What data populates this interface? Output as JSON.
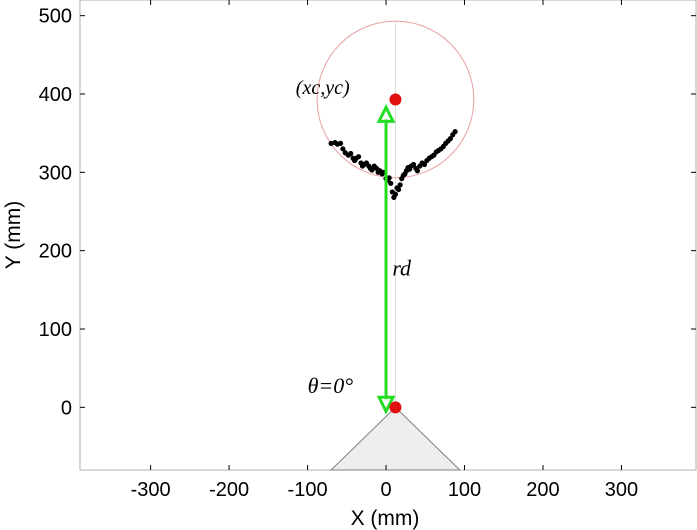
{
  "chart_data": {
    "type": "scatter",
    "xlabel": "X (mm)",
    "ylabel": "Y (mm)",
    "xlim": [
      -390,
      395
    ],
    "ylim": [
      -80,
      520
    ],
    "xticks": [
      -300,
      -200,
      -100,
      0,
      100,
      200,
      300
    ],
    "yticks": [
      0,
      100,
      200,
      300,
      400,
      500
    ],
    "grid": false,
    "legend": "none",
    "colors": {
      "points": "#000000",
      "circle": "#e8a0a0",
      "centers": "#e01010",
      "arrow": "#22dd22",
      "sensor": "#eeeeee"
    },
    "circle": {
      "xc": 12,
      "yc": 393,
      "r": 100
    },
    "centers": [
      {
        "name": "circle-center",
        "x": 12,
        "y": 393
      },
      {
        "name": "sensor-origin",
        "x": 12,
        "y": 0
      }
    ],
    "arrow": {
      "x": 0,
      "y_from": 383,
      "y_to": -5
    },
    "sensor_cone": [
      [
        -70,
        -80
      ],
      [
        12,
        0
      ],
      [
        94,
        -80
      ]
    ],
    "annotations": [
      {
        "name": "center-label",
        "text": "(xc,yc)",
        "x": -115,
        "y": 400
      },
      {
        "name": "radius-label",
        "text": "rd",
        "x": 8,
        "y": 168
      },
      {
        "name": "angle-label",
        "text": "θ=0°",
        "x": -100,
        "y": 18
      }
    ],
    "points": [
      [
        -70,
        337
      ],
      [
        -65,
        338
      ],
      [
        -62,
        336
      ],
      [
        -58,
        337
      ],
      [
        -55,
        330
      ],
      [
        -52,
        325
      ],
      [
        -48,
        322
      ],
      [
        -45,
        324
      ],
      [
        -42,
        318
      ],
      [
        -40,
        315
      ],
      [
        -38,
        318
      ],
      [
        -35,
        320
      ],
      [
        -32,
        312
      ],
      [
        -30,
        308
      ],
      [
        -28,
        310
      ],
      [
        -25,
        312
      ],
      [
        -22,
        308
      ],
      [
        -20,
        305
      ],
      [
        -18,
        303
      ],
      [
        -15,
        308
      ],
      [
        -12,
        305
      ],
      [
        -10,
        300
      ],
      [
        -8,
        302
      ],
      [
        -5,
        298
      ],
      [
        -3,
        300
      ],
      [
        0,
        292
      ],
      [
        2,
        290
      ],
      [
        4,
        293
      ],
      [
        6,
        286
      ],
      [
        8,
        275
      ],
      [
        10,
        268
      ],
      [
        12,
        272
      ],
      [
        14,
        280
      ],
      [
        16,
        278
      ],
      [
        18,
        284
      ],
      [
        20,
        292
      ],
      [
        22,
        296
      ],
      [
        24,
        298
      ],
      [
        26,
        302
      ],
      [
        28,
        306
      ],
      [
        30,
        304
      ],
      [
        32,
        308
      ],
      [
        35,
        310
      ],
      [
        38,
        305
      ],
      [
        40,
        302
      ],
      [
        43,
        308
      ],
      [
        46,
        312
      ],
      [
        49,
        310
      ],
      [
        52,
        315
      ],
      [
        55,
        318
      ],
      [
        58,
        320
      ],
      [
        61,
        322
      ],
      [
        64,
        326
      ],
      [
        67,
        328
      ],
      [
        70,
        330
      ],
      [
        73,
        333
      ],
      [
        76,
        337
      ],
      [
        79,
        340
      ],
      [
        82,
        343
      ],
      [
        85,
        348
      ],
      [
        88,
        352
      ]
    ]
  }
}
